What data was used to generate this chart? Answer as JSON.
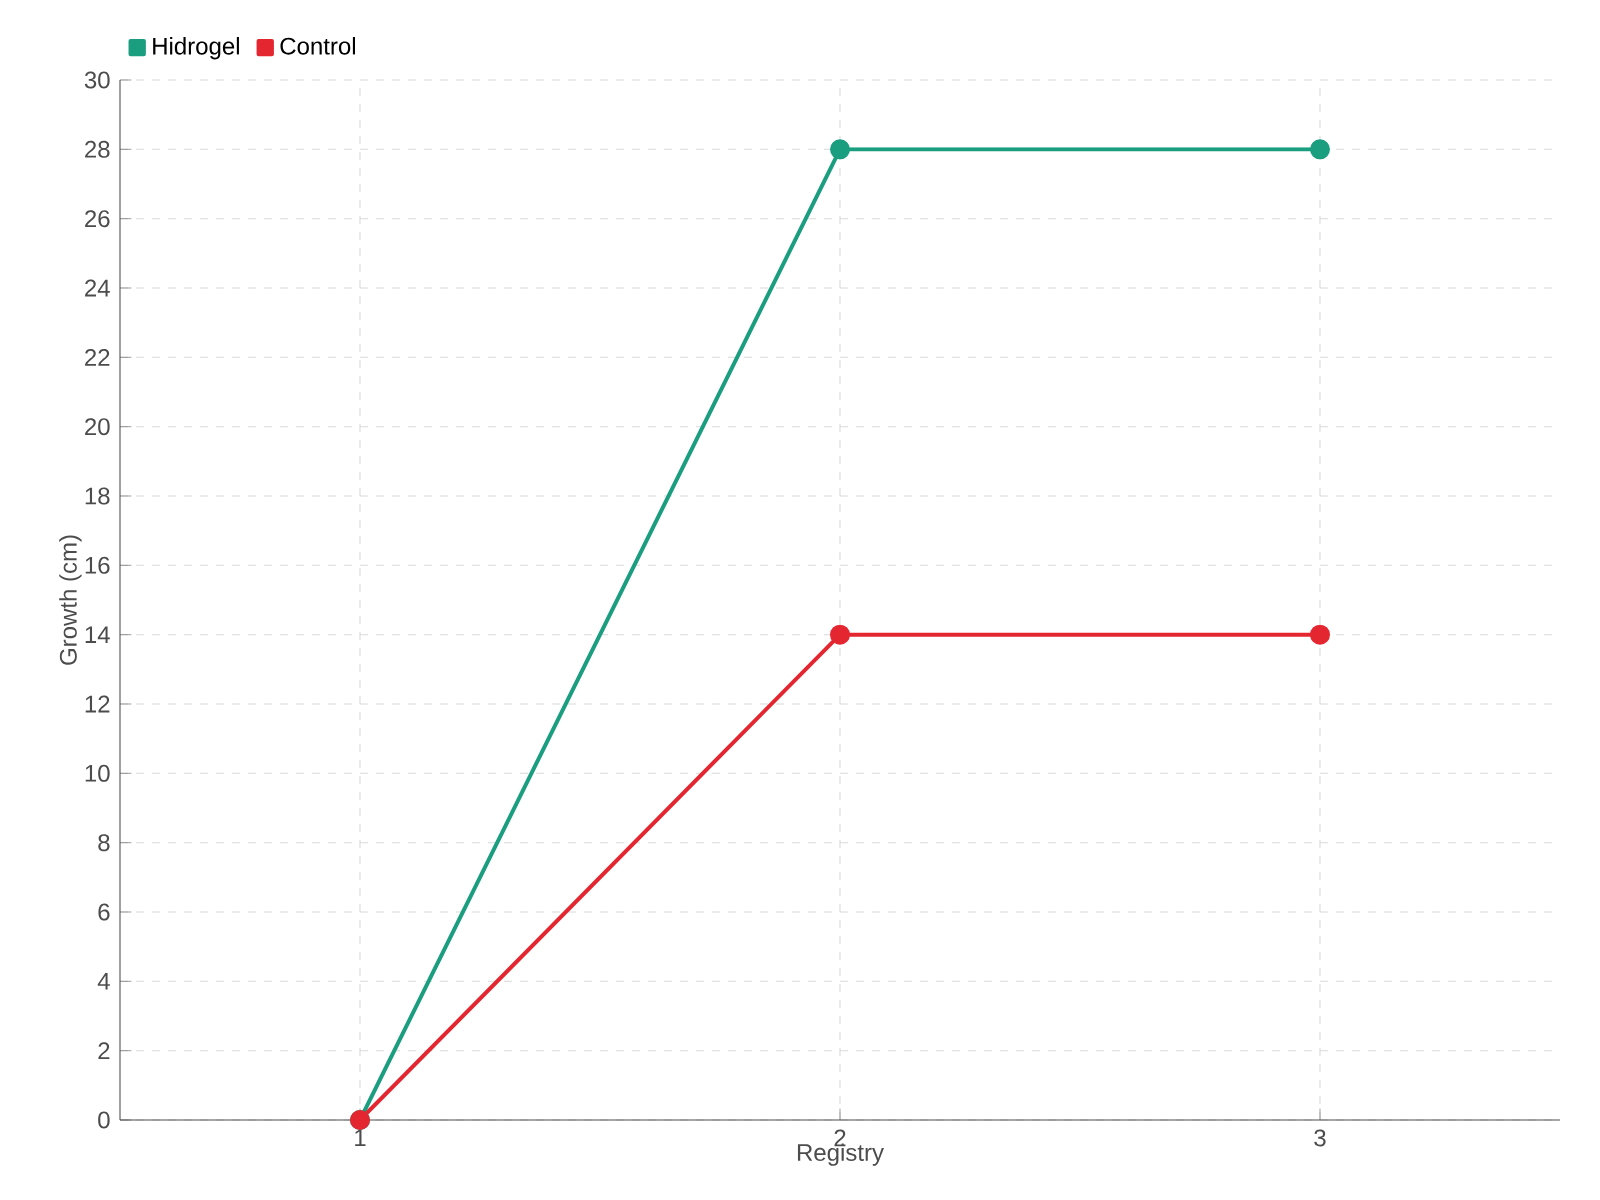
{
  "chart_data": {
    "type": "line",
    "xlabel": "Registry",
    "ylabel": "Growth (cm)",
    "categories": [
      "1",
      "2",
      "3"
    ],
    "series": [
      {
        "name": "Hidrogel",
        "color": "#1a9e7f",
        "values": [
          0,
          28,
          28
        ]
      },
      {
        "name": "Control",
        "color": "#e32630",
        "values": [
          0,
          14,
          14
        ]
      }
    ],
    "ylim": [
      0,
      30
    ],
    "yticks": [
      0,
      2,
      4,
      6,
      8,
      10,
      12,
      14,
      16,
      18,
      20,
      22,
      24,
      26,
      28,
      30
    ],
    "grid": true,
    "legend": "top left",
    "marker": "circle"
  }
}
